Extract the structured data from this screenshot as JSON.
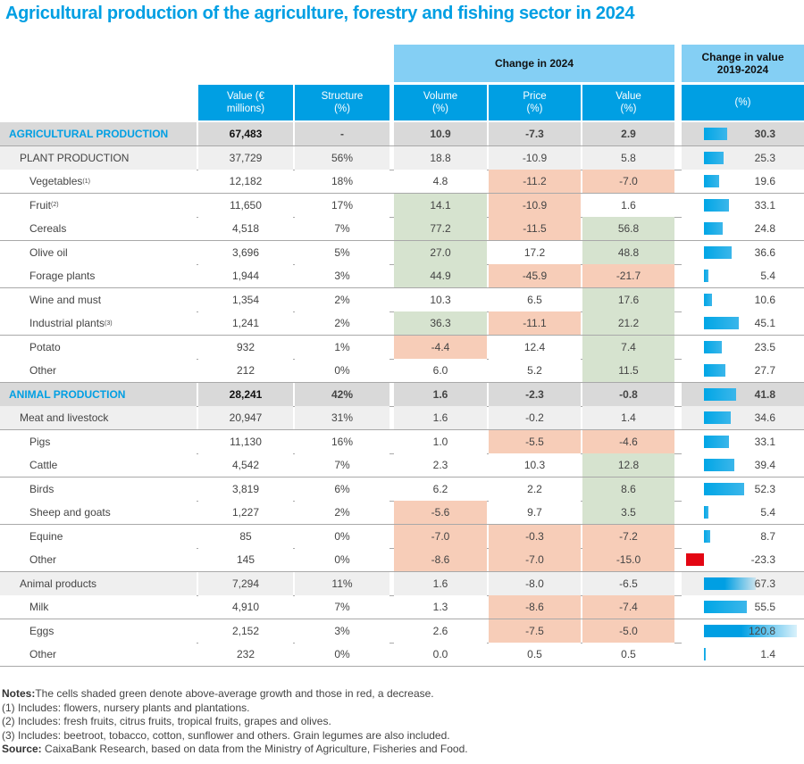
{
  "title": "Agricultural production of the agriculture, forestry and fishing sector in 2024",
  "headers": {
    "group_change_2024": "Change in 2024",
    "group_change_value": "Change in value 2019-2024",
    "value": "Value (€ millions)",
    "structure": "Structure (%)",
    "volume": "Volume (%)",
    "price": "Price (%)",
    "value_change": "Value (%)",
    "change_pct": "(%)"
  },
  "colors": {
    "accent": "#009fe3",
    "header_light": "#84cff4",
    "green_shade": "#d6e3cf",
    "red_shade": "#f7cdb8",
    "negative_bar": "#e30613",
    "row_level0": "#d9d9d9",
    "row_level1": "#efefef"
  },
  "chart_data": {
    "type": "table",
    "columns": [
      "Value (€ millions)",
      "Structure (%)",
      "Volume (%)",
      "Price (%)",
      "Value (%)",
      "Change in value 2019-2024 (%)"
    ],
    "rows": [
      {
        "label": "AGRICULTURAL PRODUCTION",
        "sup": "",
        "level": 0,
        "value": "67,483",
        "structure": "-",
        "volume": "10.9",
        "price": "-7.3",
        "value_change": "2.9",
        "change_2019_2024": 30.3,
        "shade": [
          "",
          "",
          ""
        ]
      },
      {
        "label": "PLANT PRODUCTION",
        "sup": "",
        "level": 1,
        "value": "37,729",
        "structure": "56%",
        "volume": "18.8",
        "price": "-10.9",
        "value_change": "5.8",
        "change_2019_2024": 25.3,
        "shade": [
          "",
          "",
          ""
        ]
      },
      {
        "label": "Vegetables",
        "sup": "(1)",
        "level": 2,
        "value": "12,182",
        "structure": "18%",
        "volume": "4.8",
        "price": "-11.2",
        "value_change": "-7.0",
        "change_2019_2024": 19.6,
        "shade": [
          "",
          "red",
          "red"
        ]
      },
      {
        "label": "Fruit",
        "sup": "(2)",
        "level": 2,
        "value": "11,650",
        "structure": "17%",
        "volume": "14.1",
        "price": "-10.9",
        "value_change": "1.6",
        "change_2019_2024": 33.1,
        "shade": [
          "green",
          "red",
          ""
        ]
      },
      {
        "label": "Cereals",
        "sup": "",
        "level": 2,
        "value": "4,518",
        "structure": "7%",
        "volume": "77.2",
        "price": "-11.5",
        "value_change": "56.8",
        "change_2019_2024": 24.8,
        "shade": [
          "green",
          "red",
          "green"
        ]
      },
      {
        "label": "Olive oil",
        "sup": "",
        "level": 2,
        "value": "3,696",
        "structure": "5%",
        "volume": "27.0",
        "price": "17.2",
        "value_change": "48.8",
        "change_2019_2024": 36.6,
        "shade": [
          "green",
          "",
          "green"
        ]
      },
      {
        "label": "Forage plants",
        "sup": "",
        "level": 2,
        "value": "1,944",
        "structure": "3%",
        "volume": "44.9",
        "price": "-45.9",
        "value_change": "-21.7",
        "change_2019_2024": 5.4,
        "shade": [
          "green",
          "red",
          "red"
        ]
      },
      {
        "label": "Wine and must",
        "sup": "",
        "level": 2,
        "value": "1,354",
        "structure": "2%",
        "volume": "10.3",
        "price": "6.5",
        "value_change": "17.6",
        "change_2019_2024": 10.6,
        "shade": [
          "",
          "",
          "green"
        ]
      },
      {
        "label": "Industrial plants",
        "sup": "(3)",
        "level": 2,
        "value": "1,241",
        "structure": "2%",
        "volume": "36.3",
        "price": "-11.1",
        "value_change": "21.2",
        "change_2019_2024": 45.1,
        "shade": [
          "green",
          "red",
          "green"
        ]
      },
      {
        "label": "Potato",
        "sup": "",
        "level": 2,
        "value": "932",
        "structure": "1%",
        "volume": "-4.4",
        "price": "12.4",
        "value_change": "7.4",
        "change_2019_2024": 23.5,
        "shade": [
          "red",
          "",
          "green"
        ]
      },
      {
        "label": "Other",
        "sup": "",
        "level": 2,
        "value": "212",
        "structure": "0%",
        "volume": "6.0",
        "price": "5.2",
        "value_change": "11.5",
        "change_2019_2024": 27.7,
        "shade": [
          "",
          "",
          "green"
        ]
      },
      {
        "label": "ANIMAL PRODUCTION",
        "sup": "",
        "level": 0,
        "value": "28,241",
        "structure": "42%",
        "volume": "1.6",
        "price": "-2.3",
        "value_change": "-0.8",
        "change_2019_2024": 41.8,
        "shade": [
          "",
          "",
          ""
        ]
      },
      {
        "label": "Meat and livestock",
        "sup": "",
        "level": 1,
        "value": "20,947",
        "structure": "31%",
        "volume": "1.6",
        "price": "-0.2",
        "value_change": "1.4",
        "change_2019_2024": 34.6,
        "shade": [
          "",
          "",
          ""
        ]
      },
      {
        "label": "Pigs",
        "sup": "",
        "level": 2,
        "value": "11,130",
        "structure": "16%",
        "volume": "1.0",
        "price": "-5.5",
        "value_change": "-4.6",
        "change_2019_2024": 33.1,
        "shade": [
          "",
          "red",
          "red"
        ]
      },
      {
        "label": "Cattle",
        "sup": "",
        "level": 2,
        "value": "4,542",
        "structure": "7%",
        "volume": "2.3",
        "price": "10.3",
        "value_change": "12.8",
        "change_2019_2024": 39.4,
        "shade": [
          "",
          "",
          "green"
        ]
      },
      {
        "label": "Birds",
        "sup": "",
        "level": 2,
        "value": "3,819",
        "structure": "6%",
        "volume": "6.2",
        "price": "2.2",
        "value_change": "8.6",
        "change_2019_2024": 52.3,
        "shade": [
          "",
          "",
          "green"
        ]
      },
      {
        "label": "Sheep and goats",
        "sup": "",
        "level": 2,
        "value": "1,227",
        "structure": "2%",
        "volume": "-5.6",
        "price": "9.7",
        "value_change": "3.5",
        "change_2019_2024": 5.4,
        "shade": [
          "red",
          "",
          "green"
        ]
      },
      {
        "label": "Equine",
        "sup": "",
        "level": 2,
        "value": "85",
        "structure": "0%",
        "volume": "-7.0",
        "price": "-0.3",
        "value_change": "-7.2",
        "change_2019_2024": 8.7,
        "shade": [
          "red",
          "red",
          "red"
        ]
      },
      {
        "label": "Other",
        "sup": "",
        "level": 2,
        "value": "145",
        "structure": "0%",
        "volume": "-8.6",
        "price": "-7.0",
        "value_change": "-15.0",
        "change_2019_2024": -23.3,
        "shade": [
          "red",
          "red",
          "red"
        ]
      },
      {
        "label": "Animal products",
        "sup": "",
        "level": 1,
        "value": "7,294",
        "structure": "11%",
        "volume": "1.6",
        "price": "-8.0",
        "value_change": "-6.5",
        "change_2019_2024": 67.3,
        "shade": [
          "",
          "",
          ""
        ]
      },
      {
        "label": "Milk",
        "sup": "",
        "level": 2,
        "value": "4,910",
        "structure": "7%",
        "volume": "1.3",
        "price": "-8.6",
        "value_change": "-7.4",
        "change_2019_2024": 55.5,
        "shade": [
          "",
          "red",
          "red"
        ]
      },
      {
        "label": "Eggs",
        "sup": "",
        "level": 2,
        "value": "2,152",
        "structure": "3%",
        "volume": "2.6",
        "price": "-7.5",
        "value_change": "-5.0",
        "change_2019_2024": 120.8,
        "shade": [
          "",
          "red",
          "red"
        ]
      },
      {
        "label": "Other",
        "sup": "",
        "level": 2,
        "value": "232",
        "structure": "0%",
        "volume": "0.0",
        "price": "0.5",
        "value_change": "0.5",
        "change_2019_2024": 1.4,
        "shade": [
          "",
          "",
          ""
        ]
      }
    ]
  },
  "notes": {
    "notes_label": "Notes:",
    "notes_text": "The cells shaded green denote above-average growth and those in red, a decrease.",
    "note1": "(1) Includes: flowers, nursery plants and plantations.",
    "note2": "(2) Includes: fresh fruits, citrus fruits, tropical fruits, grapes and olives.",
    "note3": "(3) Includes: beetroot, tobacco, cotton, sunflower and others. Grain legumes are also included.",
    "source_label": "Source:",
    "source_text": " CaixaBank Research, based on data from the Ministry of Agriculture, Fisheries and Food."
  }
}
